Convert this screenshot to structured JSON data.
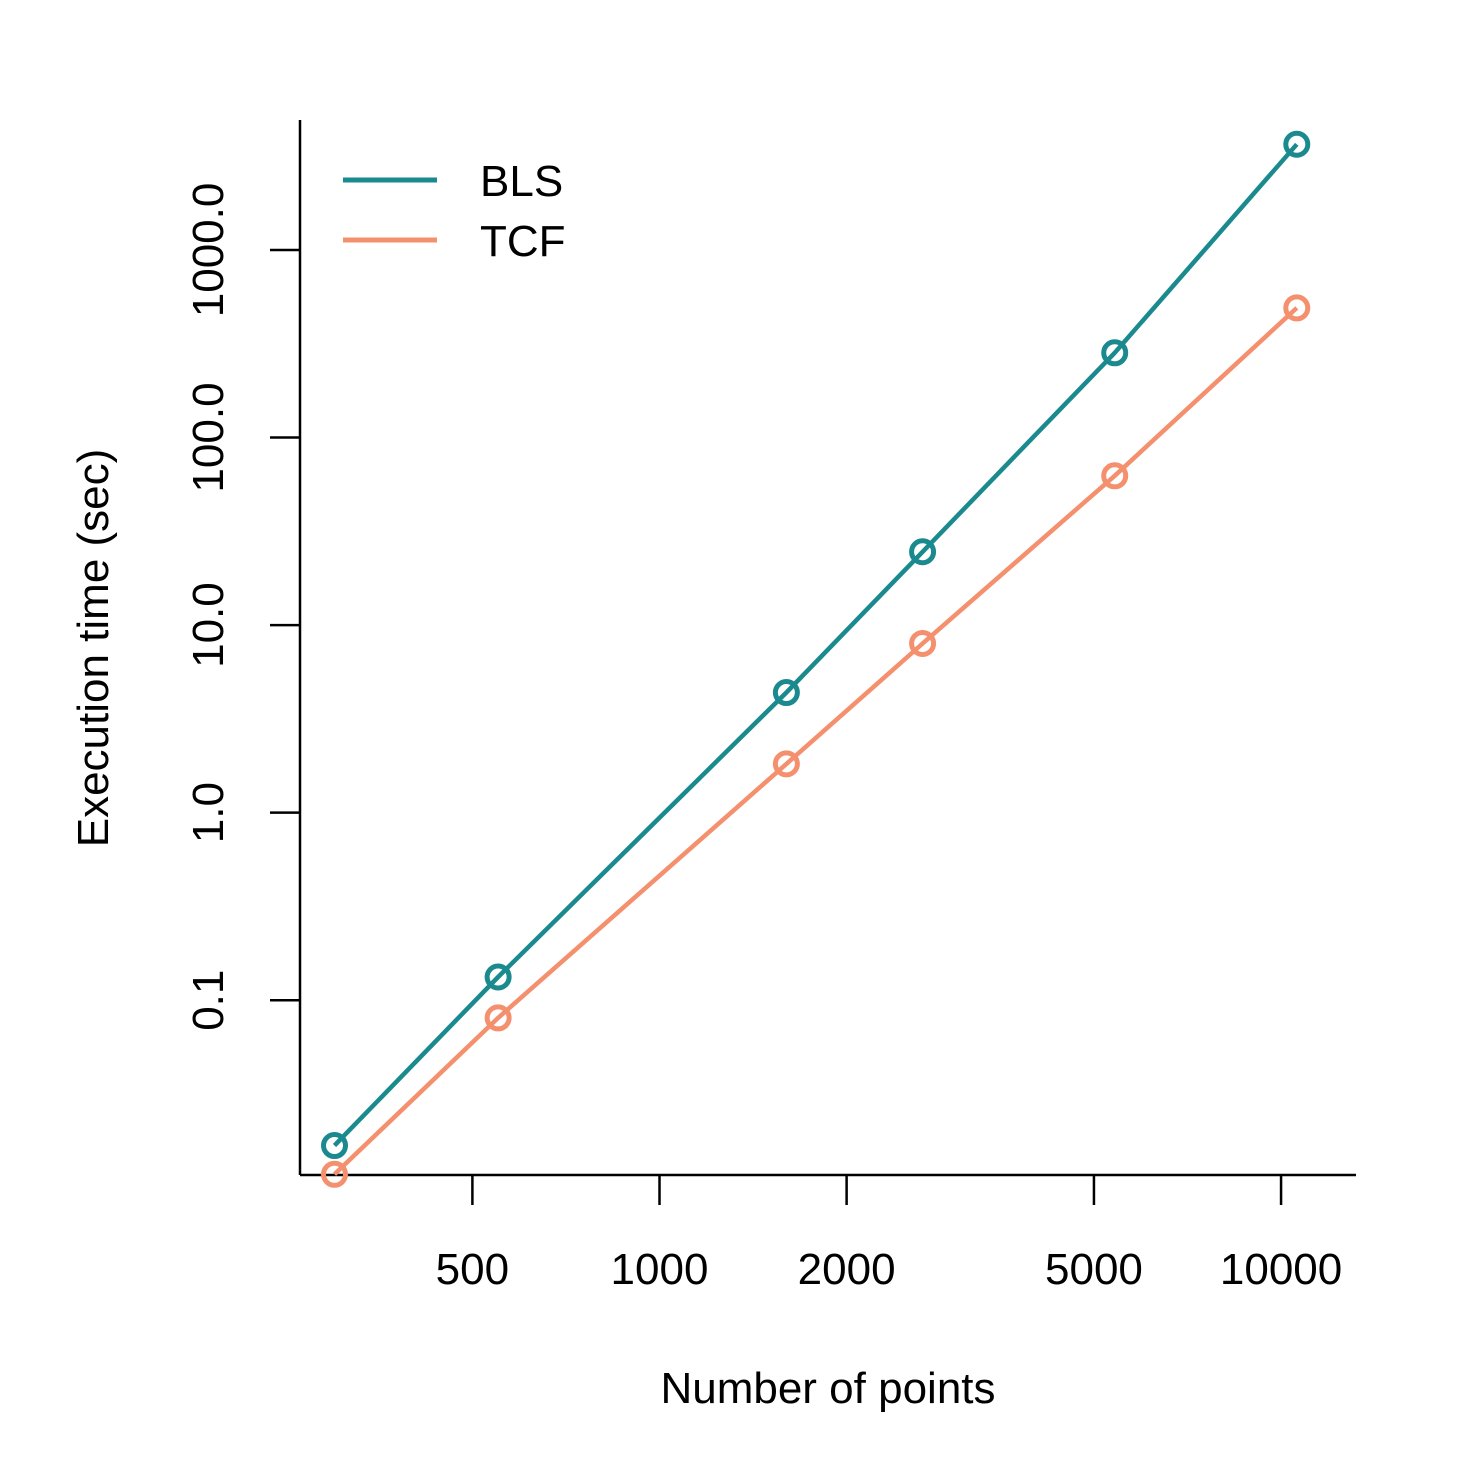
{
  "chart_data": {
    "type": "line",
    "title": "",
    "xlabel": "Number of points",
    "ylabel": "Execution time (sec)",
    "x_scale": "log",
    "y_scale": "log",
    "xlim": [
      264,
      13200
    ],
    "ylim": [
      0.0117,
      4930
    ],
    "x_ticks": [
      {
        "value": 500,
        "label": "500"
      },
      {
        "value": 1000,
        "label": "1000"
      },
      {
        "value": 2000,
        "label": "2000"
      },
      {
        "value": 5000,
        "label": "5000"
      },
      {
        "value": 10000,
        "label": "10000"
      }
    ],
    "y_ticks": [
      {
        "value": 0.1,
        "label": "0.1"
      },
      {
        "value": 1,
        "label": "1.0"
      },
      {
        "value": 10,
        "label": "10.0"
      },
      {
        "value": 100,
        "label": "100.0"
      },
      {
        "value": 1000,
        "label": "1000.0"
      }
    ],
    "grid": false,
    "legend_position": "top-left",
    "x": [
      300,
      550,
      1600,
      2650,
      5400,
      10600
    ],
    "series": [
      {
        "name": "BLS",
        "color": "#1a8a8f",
        "values": [
          0.0168,
          0.133,
          4.37,
          24.6,
          283,
          3660
        ]
      },
      {
        "name": "TCF",
        "color": "#f5906e",
        "values": [
          0.0118,
          0.0805,
          1.82,
          7.98,
          62.5,
          491
        ]
      }
    ]
  }
}
